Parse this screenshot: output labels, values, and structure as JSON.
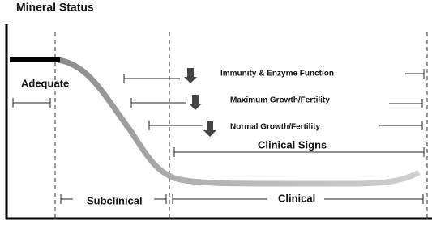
{
  "title": "Mineral Status",
  "labels": {
    "adequate": "Adequate",
    "subclinical": "Subclinical",
    "clinical": "Clinical",
    "clinical_signs": "Clinical Signs"
  },
  "functions": [
    "Immunity & Enzyme Function",
    "Maximum Growth/Fertility",
    "Normal Growth/Fertility"
  ]
}
